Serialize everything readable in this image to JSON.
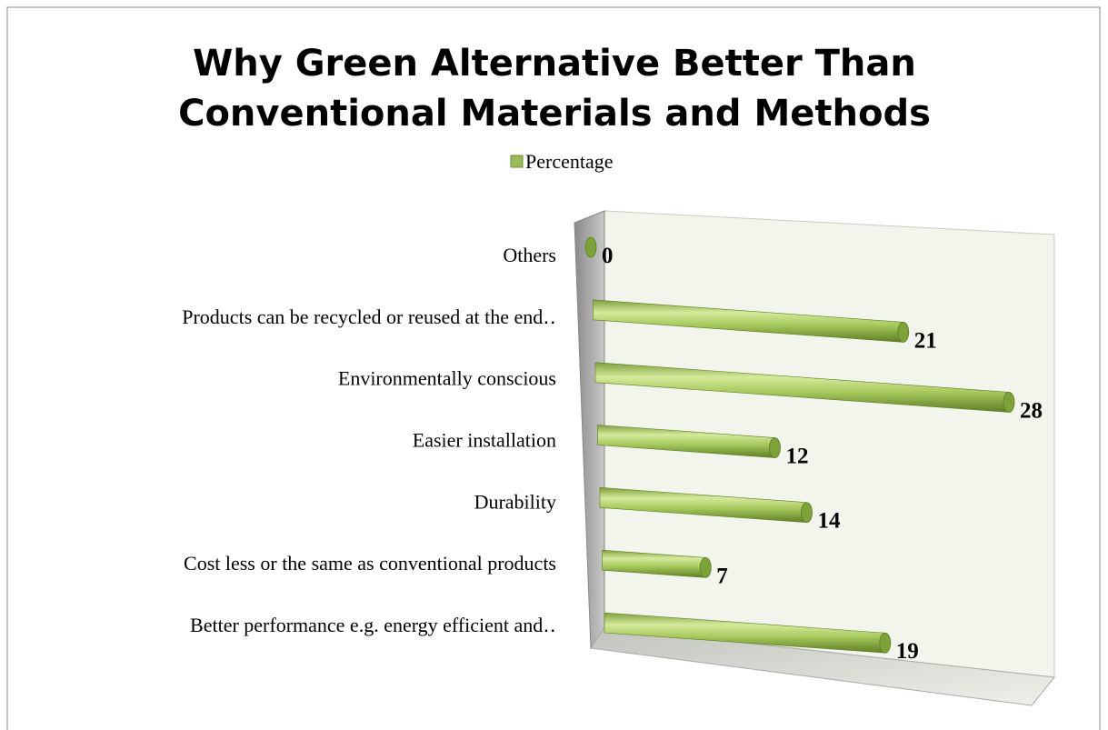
{
  "chart_data": {
    "type": "bar3d",
    "title": [
      "Why Green Alternative Better Than",
      "Conventional Materials and Methods"
    ],
    "categories": [
      "Others",
      "Products can be recycled or reused at the end‥",
      "Environmentally conscious",
      "Easier installation",
      "Durability",
      "Cost less or the same as conventional products",
      "Better performance e.g. energy efficient and‥"
    ],
    "series": [
      {
        "name": "Percentage",
        "color": "#9bbb59",
        "values": [
          0,
          21,
          28,
          12,
          14,
          7,
          19
        ]
      }
    ],
    "legend": "top"
  }
}
